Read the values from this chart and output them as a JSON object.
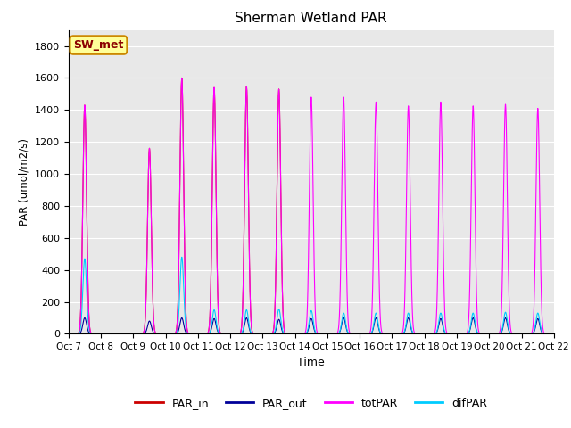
{
  "title": "Sherman Wetland PAR",
  "ylabel": "PAR (umol/m2/s)",
  "xlabel": "Time",
  "annotation": "SW_met",
  "yticks": [
    0,
    200,
    400,
    600,
    800,
    1000,
    1200,
    1400,
    1600,
    1800
  ],
  "ylim": [
    0,
    1900
  ],
  "xtick_labels": [
    "Oct 7",
    "Oct 8",
    "Oct 9",
    "Oct 10",
    "Oct 11",
    "Oct 12",
    "Oct 13",
    "Oct 14",
    "Oct 15",
    "Oct 16",
    "Oct 17",
    "Oct 18",
    "Oct 19",
    "Oct 20",
    "Oct 21",
    "Oct 22"
  ],
  "colors": {
    "PAR_in": "#cc0000",
    "PAR_out": "#000099",
    "totPAR": "#ff00ff",
    "difPAR": "#00ccff"
  },
  "background_color": "#e8e8e8",
  "peaks_PAR_in": [
    1430,
    0,
    1160,
    1600,
    1540,
    1545,
    1530,
    0,
    0,
    0,
    0,
    0,
    0,
    0,
    0
  ],
  "peaks_totPAR": [
    1430,
    0,
    1160,
    1600,
    1540,
    1545,
    1530,
    1480,
    1480,
    1450,
    1425,
    1450,
    1425,
    1435,
    1410
  ],
  "peaks_PAR_out": [
    100,
    0,
    80,
    100,
    95,
    100,
    90,
    95,
    100,
    100,
    100,
    95,
    100,
    100,
    95
  ],
  "peaks_difPAR": [
    470,
    0,
    0,
    480,
    150,
    150,
    155,
    145,
    130,
    130,
    130,
    130,
    130,
    135,
    130
  ],
  "sunrise": 0.27,
  "sunset": 0.73,
  "sharpness": 8.0,
  "figsize": [
    6.4,
    4.8
  ],
  "dpi": 100
}
